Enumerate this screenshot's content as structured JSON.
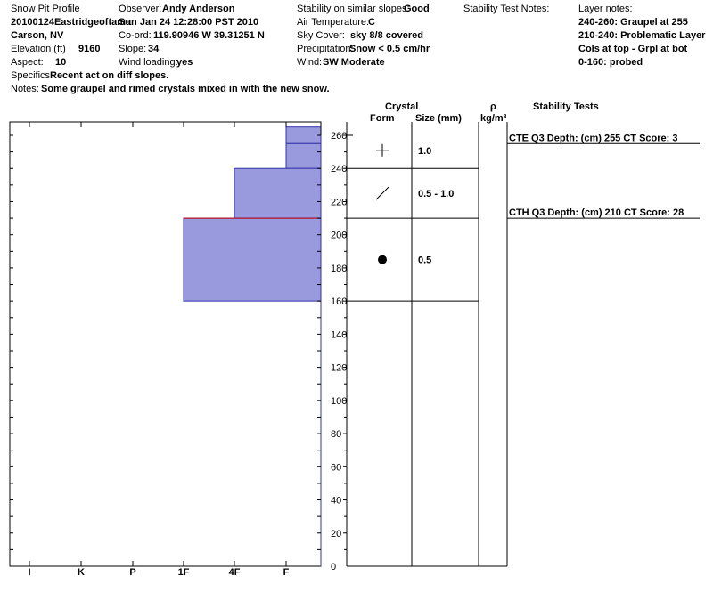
{
  "header": {
    "profile_label": "Snow Pit Profile",
    "pit_name": "20100124Eastridgeoftama",
    "location": "Carson, NV",
    "elevation_label": "Elevation (ft)",
    "elevation": "9160",
    "aspect_label": "Aspect:",
    "aspect": "10",
    "observer_label": "Observer:",
    "observer": "Andy Anderson",
    "datetime": "Sun Jan 24 12:28:00 PST 2010",
    "coord_label": "Co-ord:",
    "coord": "119.90946 W 39.31251 N",
    "slope_label": "Slope:",
    "slope": "34",
    "wind_loading_label": "Wind loading:",
    "wind_loading": "yes",
    "stability_label": "Stability on similar slopes:",
    "stability": "Good",
    "air_temp_label": "Air Temperature:",
    "air_temp": "C",
    "sky_label": "Sky Cover:",
    "sky": "sky 8/8 covered",
    "precip_label": "Precipitation:",
    "precip": "Snow < 0.5 cm/hr",
    "wind_label": "Wind:",
    "wind": "SW Moderate",
    "stab_notes_label": "Stability Test Notes:",
    "layer_notes_label": "Layer notes:",
    "layer_notes": [
      "240-260: Graupel at 255",
      "210-240: Problematic Layer",
      "Cols at top - Grpl at bot",
      "0-160: probed"
    ],
    "specifics_label": "Specifics:",
    "specifics": "Recent act on diff slopes.",
    "notes_label": "Notes:",
    "notes": "Some graupel and rimed crystals mixed in with the new snow."
  },
  "table_headers": {
    "crystal": "Crystal",
    "form": "Form",
    "size": "Size (mm)",
    "rho": "ρ",
    "rho_unit": "kg/m³",
    "stability_tests": "Stability Tests"
  },
  "chart_data": {
    "type": "bar",
    "orientation": "horizontal-step",
    "title": "",
    "xlabel": "",
    "ylabel": "",
    "x_categories": [
      "I",
      "K",
      "P",
      "1F",
      "4F",
      "F"
    ],
    "x_scale_note": "hardness index; F at right edge",
    "ylim": [
      0,
      265
    ],
    "y_ticks": [
      0,
      20,
      40,
      60,
      80,
      100,
      120,
      140,
      160,
      180,
      200,
      220,
      240,
      260
    ],
    "bar_color": "#9999dd",
    "layers": [
      {
        "bottom": 255,
        "top": 265,
        "hardness": "F"
      },
      {
        "bottom": 240,
        "top": 255,
        "hardness": "F"
      },
      {
        "bottom": 210,
        "top": 240,
        "hardness": "4F"
      },
      {
        "bottom": 160,
        "top": 210,
        "hardness": "1F"
      }
    ],
    "problematic_interface": 210,
    "problematic_color": "#cc0000",
    "crystal_layers": [
      {
        "bottom": 240,
        "top": 265,
        "form": "plus-icon",
        "size": "1.0"
      },
      {
        "bottom": 210,
        "top": 240,
        "form": "slash-icon",
        "size": "0.5 -  1.0"
      },
      {
        "bottom": 160,
        "top": 210,
        "form": "dot-icon",
        "size": "0.5"
      }
    ],
    "stability_tests": [
      {
        "depth": 255,
        "text": "CTE Q3 Depth: (cm) 255 CT Score: 3"
      },
      {
        "depth": 210,
        "text": "CTH Q3 Depth: (cm) 210 CT Score: 28"
      }
    ]
  }
}
